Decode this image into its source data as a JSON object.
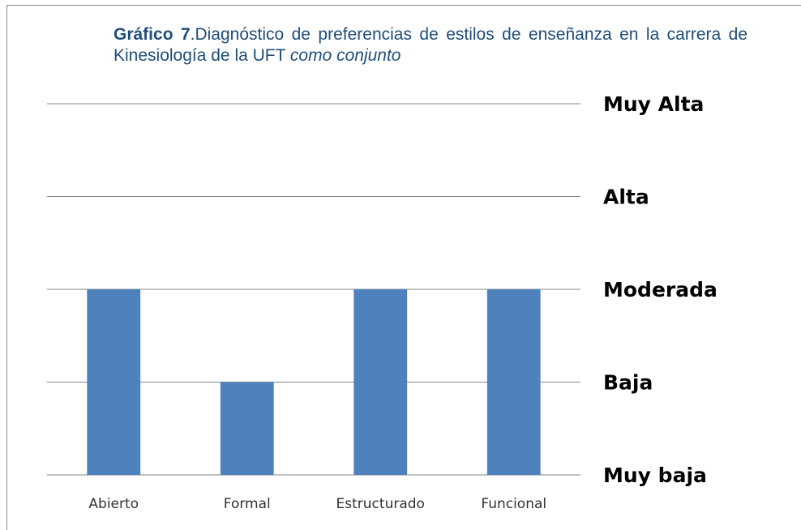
{
  "chart_data": {
    "type": "bar",
    "title": {
      "label": "Gráfico 7",
      "text": ".Diagnóstico de preferencias de estilos de enseñanza en la carrera de Kinesiología de la UFT",
      "emphasis": "como conjunto"
    },
    "categories": [
      "Abierto",
      "Formal",
      "Estructurado",
      "Funcional"
    ],
    "values": [
      3,
      2,
      3,
      3
    ],
    "color": "#4f81bd",
    "ylim": [
      1,
      5
    ],
    "yticks": [
      {
        "value": 1,
        "label": "Muy baja"
      },
      {
        "value": 2,
        "label": "Baja"
      },
      {
        "value": 3,
        "label": "Moderada"
      },
      {
        "value": 4,
        "label": "Alta"
      },
      {
        "value": 5,
        "label": "Muy Alta"
      }
    ],
    "grid": true
  }
}
